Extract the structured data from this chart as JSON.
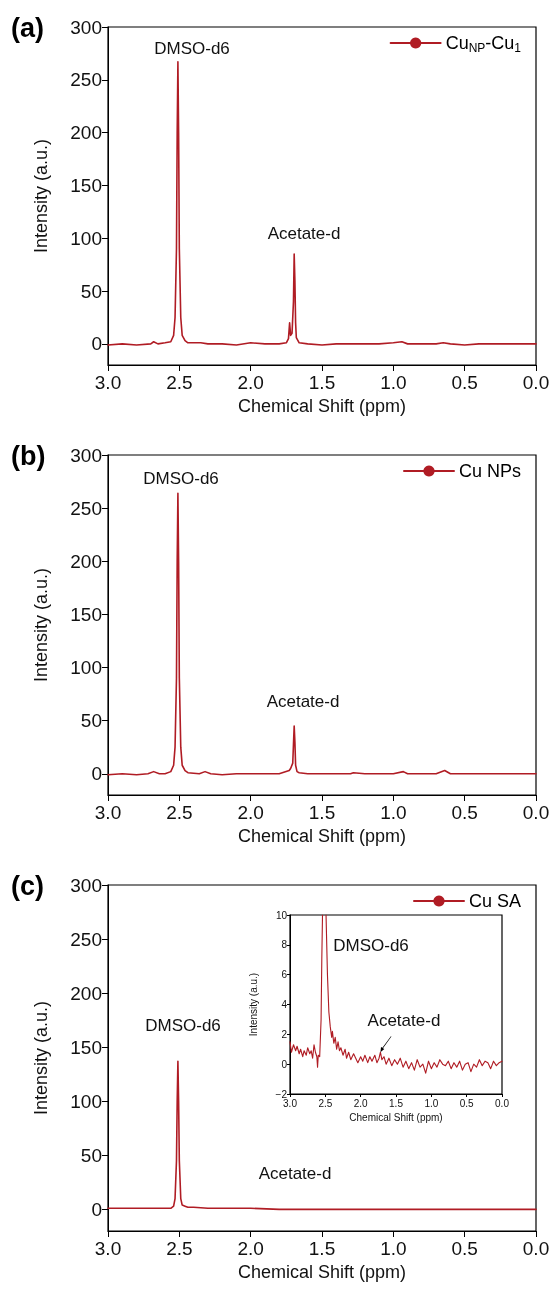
{
  "chart_data": [
    {
      "type": "line",
      "title": "(a)",
      "xlabel": "Chemical Shift (ppm)",
      "ylabel": "Intensity (a.u.)",
      "xlim": [
        3,
        0
      ],
      "xticks": [
        {
          "value": 3,
          "label": "3.0"
        },
        {
          "value": 2.5,
          "label": "2.5"
        },
        {
          "value": 2,
          "label": "2.0"
        },
        {
          "value": 1.5,
          "label": "1.5"
        },
        {
          "value": 1,
          "label": "1.0"
        },
        {
          "value": 0.5,
          "label": "0.5"
        },
        {
          "value": 0,
          "label": "0.0"
        }
      ],
      "ylim": [
        -20,
        300
      ],
      "yticks": [
        0,
        50,
        100,
        150,
        200,
        250,
        300
      ],
      "legend": "top right",
      "grid": false,
      "marker": "none",
      "line_style": "solid",
      "annotations": [
        "DMSO-d6",
        "Acetate-d"
      ],
      "series": [
        {
          "name": "Cu$_{NP}$-Cu$_{1}$",
          "color": "#b01c24",
          "x": [
            3.0,
            2.9,
            2.8,
            2.7,
            2.68,
            2.65,
            2.6,
            2.56,
            2.54,
            2.53,
            2.52,
            2.515,
            2.51,
            2.505,
            2.5,
            2.49,
            2.48,
            2.46,
            2.44,
            2.35,
            2.3,
            2.2,
            2.1,
            2.0,
            1.9,
            1.8,
            1.75,
            1.735,
            1.727,
            1.72,
            1.71,
            1.7,
            1.695,
            1.69,
            1.685,
            1.68,
            1.66,
            1.6,
            1.5,
            1.4,
            1.3,
            1.2,
            1.1,
            1.0,
            0.94,
            0.9,
            0.8,
            0.7,
            0.65,
            0.6,
            0.5,
            0.4,
            0.3,
            0.2,
            0.1,
            0.0
          ],
          "values": [
            -1,
            0,
            -1,
            0,
            2,
            0,
            1,
            2,
            8,
            25,
            90,
            200,
            267,
            200,
            90,
            25,
            8,
            3,
            1,
            1,
            0,
            0,
            -1,
            1,
            0,
            0,
            1,
            5,
            20,
            8,
            10,
            40,
            85,
            60,
            20,
            6,
            1,
            0,
            -1,
            0,
            0,
            0,
            0,
            1,
            2,
            0,
            0,
            0,
            1,
            0,
            -1,
            0,
            0,
            0,
            0,
            0
          ]
        }
      ]
    },
    {
      "type": "line",
      "title": "(b)",
      "xlabel": "Chemical Shift (ppm)",
      "ylabel": "Intensity (a.u.)",
      "xlim": [
        3,
        0
      ],
      "xticks": [
        {
          "value": 3,
          "label": "3.0"
        },
        {
          "value": 2.5,
          "label": "2.5"
        },
        {
          "value": 2,
          "label": "2.0"
        },
        {
          "value": 1.5,
          "label": "1.5"
        },
        {
          "value": 1,
          "label": "1.0"
        },
        {
          "value": 0.5,
          "label": "0.5"
        },
        {
          "value": 0,
          "label": "0.0"
        }
      ],
      "ylim": [
        -20,
        300
      ],
      "yticks": [
        0,
        50,
        100,
        150,
        200,
        250,
        300
      ],
      "legend": "top right",
      "grid": false,
      "marker": "none",
      "line_style": "solid",
      "annotations": [
        "DMSO-d6",
        "Acetate-d"
      ],
      "series": [
        {
          "name": "Cu NPs",
          "color": "#b01c24",
          "x": [
            3.0,
            2.9,
            2.8,
            2.72,
            2.68,
            2.64,
            2.6,
            2.56,
            2.54,
            2.53,
            2.52,
            2.515,
            2.51,
            2.505,
            2.5,
            2.49,
            2.48,
            2.46,
            2.44,
            2.36,
            2.32,
            2.28,
            2.2,
            2.1,
            2.0,
            1.9,
            1.8,
            1.73,
            1.72,
            1.705,
            1.695,
            1.69,
            1.685,
            1.675,
            1.66,
            1.6,
            1.5,
            1.4,
            1.3,
            1.28,
            1.2,
            1.1,
            1.0,
            0.93,
            0.9,
            0.8,
            0.7,
            0.64,
            0.6,
            0.5,
            0.4,
            0.3,
            0.2,
            0.1,
            0.0
          ],
          "values": [
            -1,
            0,
            -1,
            0,
            2,
            0,
            0,
            2,
            8,
            25,
            90,
            200,
            264,
            200,
            90,
            25,
            8,
            3,
            1,
            0,
            2,
            0,
            -1,
            0,
            0,
            0,
            0,
            3,
            5,
            10,
            45,
            30,
            8,
            2,
            1,
            0,
            0,
            0,
            0,
            1,
            0,
            0,
            0,
            2,
            0,
            0,
            0,
            3,
            0,
            0,
            0,
            0,
            0,
            0,
            0
          ]
        }
      ]
    },
    {
      "type": "line",
      "title": "(c)",
      "xlabel": "Chemical Shift (ppm)",
      "ylabel": "Intensity (a.u.)",
      "xlim": [
        3,
        0
      ],
      "xticks": [
        {
          "value": 3,
          "label": "3.0"
        },
        {
          "value": 2.5,
          "label": "2.5"
        },
        {
          "value": 2,
          "label": "2.0"
        },
        {
          "value": 1.5,
          "label": "1.5"
        },
        {
          "value": 1,
          "label": "1.0"
        },
        {
          "value": 0.5,
          "label": "0.5"
        },
        {
          "value": 0,
          "label": "0.0"
        }
      ],
      "ylim": [
        -20,
        300
      ],
      "yticks": [
        0,
        50,
        100,
        150,
        200,
        250,
        300
      ],
      "legend": "top right",
      "grid": false,
      "marker": "none",
      "line_style": "solid",
      "annotations": [
        "DMSO-d6",
        "Acetate-d"
      ],
      "series": [
        {
          "name": "Cu SA",
          "color": "#b01c24",
          "x": [
            3.0,
            2.9,
            2.8,
            2.7,
            2.6,
            2.56,
            2.54,
            2.53,
            2.52,
            2.515,
            2.51,
            2.505,
            2.5,
            2.49,
            2.48,
            2.46,
            2.44,
            2.4,
            2.3,
            2.2,
            2.0,
            1.8,
            1.5,
            1.0,
            0.5,
            0.0
          ],
          "values": [
            1,
            1,
            1,
            1,
            1,
            1,
            3,
            10,
            45,
            100,
            137,
            100,
            45,
            10,
            4,
            3,
            2,
            2,
            1,
            1,
            1,
            0,
            0,
            0,
            0,
            0
          ]
        }
      ]
    },
    {
      "type": "line",
      "xlabel": "Chemical Shift (ppm)",
      "ylabel": "Intensity (a.u.)",
      "xlim": [
        3,
        0
      ],
      "xticks": [
        {
          "value": 3,
          "label": "3.0"
        },
        {
          "value": 2.5,
          "label": "2.5"
        },
        {
          "value": 2,
          "label": "2.0"
        },
        {
          "value": 1.5,
          "label": "1.5"
        },
        {
          "value": 1,
          "label": "1.0"
        },
        {
          "value": 0.5,
          "label": "0.5"
        },
        {
          "value": 0,
          "label": "0.0"
        }
      ],
      "ylim": [
        -2,
        10
      ],
      "yticks": [
        {
          "value": -2,
          "label": "−2"
        },
        0,
        2,
        4,
        6,
        8,
        10
      ],
      "legend": false,
      "grid": false,
      "marker": "none",
      "line_style": "solid",
      "annotations": [
        "DMSO-d6",
        {
          "text": "Acetate-d",
          "x": 1.72,
          "y": 0.8
        }
      ],
      "series": [
        {
          "color": "#b01c24",
          "x": [
            3.0,
            2.98,
            2.95,
            2.92,
            2.9,
            2.87,
            2.85,
            2.82,
            2.8,
            2.77,
            2.75,
            2.72,
            2.7,
            2.68,
            2.66,
            2.64,
            2.62,
            2.61,
            2.6,
            2.58,
            2.56,
            2.55,
            2.54,
            2.52,
            2.5,
            2.49,
            2.47,
            2.45,
            2.43,
            2.41,
            2.4,
            2.38,
            2.36,
            2.34,
            2.32,
            2.3,
            2.28,
            2.25,
            2.22,
            2.2,
            2.17,
            2.14,
            2.1,
            2.07,
            2.04,
            2.0,
            1.97,
            1.94,
            1.9,
            1.87,
            1.84,
            1.8,
            1.77,
            1.74,
            1.72,
            1.7,
            1.67,
            1.64,
            1.6,
            1.56,
            1.52,
            1.48,
            1.44,
            1.4,
            1.36,
            1.32,
            1.28,
            1.24,
            1.2,
            1.16,
            1.12,
            1.08,
            1.04,
            1.0,
            0.96,
            0.92,
            0.88,
            0.84,
            0.8,
            0.76,
            0.72,
            0.68,
            0.64,
            0.6,
            0.56,
            0.52,
            0.48,
            0.44,
            0.4,
            0.36,
            0.32,
            0.28,
            0.24,
            0.2,
            0.16,
            0.12,
            0.08,
            0.04,
            0.0
          ],
          "values": [
            1.5,
            0.8,
            1.3,
            0.9,
            1.2,
            0.7,
            1,
            0.5,
            0.9,
            0.6,
            1.1,
            0.7,
            0.9,
            0.4,
            1.3,
            0.8,
            0.5,
            -0.2,
            0.6,
            0.5,
            3,
            7,
            10,
            null,
            null,
            10,
            6,
            3.5,
            2.5,
            1.8,
            2.2,
            1.4,
            1.8,
            1,
            1.5,
            0.9,
            1.1,
            0.6,
            1,
            0.4,
            0.8,
            0.3,
            0.7,
            0.4,
            0.1,
            0.5,
            0.2,
            0.6,
            0.1,
            0.5,
            0.2,
            0.6,
            0.1,
            0.4,
            0.8,
            0.3,
            0.5,
            0,
            0.4,
            -0.1,
            0.3,
            0,
            0.4,
            -0.2,
            0.2,
            -0.3,
            0.1,
            -0.4,
            0.3,
            -0.2,
            0,
            -0.6,
            0.2,
            -0.3,
            0.1,
            -0.2,
            0.3,
            0,
            -0.1,
            0.2,
            -0.3,
            0.1,
            -0.2,
            0.2,
            -0.4,
            0,
            0.1,
            -0.5,
            0,
            -0.2,
            0.3,
            -0.1,
            0.2,
            0.1,
            -0.3,
            0.2,
            -0.1,
            0.1,
            0.2
          ]
        }
      ]
    }
  ]
}
